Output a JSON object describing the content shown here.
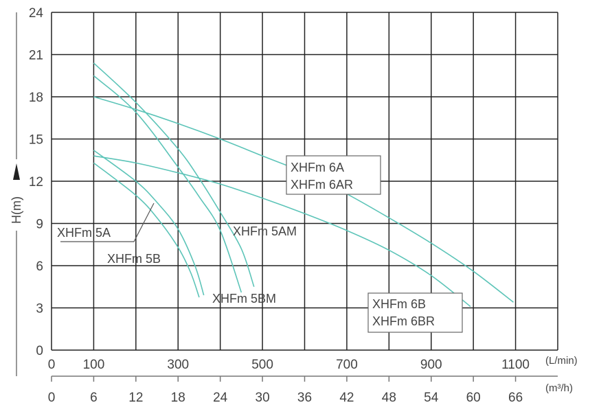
{
  "chart_data": {
    "type": "line",
    "title": "",
    "ylabel": "H(m)",
    "xlabel": "",
    "x_unit_primary": "(L/min)",
    "x_unit_secondary": "(m³/h)",
    "xlim": [
      0,
      1200
    ],
    "ylim": [
      0,
      24
    ],
    "grid": true,
    "y_ticks": [
      "0",
      "3",
      "6",
      "9",
      "12",
      "15",
      "18",
      "21",
      "24"
    ],
    "y_tick_values": [
      0,
      3,
      6,
      9,
      12,
      15,
      18,
      21,
      24
    ],
    "x_ticks_primary": [
      "0",
      "100",
      "300",
      "500",
      "700",
      "900",
      "1100"
    ],
    "x_tick_values_primary": [
      0,
      100,
      300,
      500,
      700,
      900,
      1100
    ],
    "x_ticks_secondary": [
      "0",
      "6",
      "12",
      "18",
      "24",
      "30",
      "36",
      "42",
      "48",
      "54",
      "60",
      "66"
    ],
    "line_color": "#5cc4b8",
    "series": [
      {
        "name": "XHFm 5AM",
        "x": [
          100,
          200,
          300,
          350,
          400,
          450,
          480
        ],
        "y": [
          20.4,
          17.6,
          14.3,
          12.2,
          9.8,
          7.2,
          4.5
        ]
      },
      {
        "name": "XHFm 5BM",
        "x": [
          100,
          200,
          300,
          350,
          400,
          450
        ],
        "y": [
          19.5,
          16.9,
          13.0,
          10.9,
          8.5,
          4.1
        ]
      },
      {
        "name": "XHFm 6A / XHFm 6AR",
        "x": [
          100,
          200,
          300,
          400,
          500,
          600,
          700,
          800,
          900,
          1000,
          1095
        ],
        "y": [
          18.0,
          17.1,
          16.1,
          15.0,
          13.8,
          12.6,
          11.1,
          9.4,
          7.6,
          5.6,
          3.4
        ]
      },
      {
        "name": "XHFm 6B / XHFm 6BR",
        "x": [
          100,
          200,
          300,
          400,
          500,
          600,
          700,
          800,
          900,
          993
        ],
        "y": [
          13.8,
          13.3,
          12.6,
          11.8,
          10.8,
          9.7,
          8.5,
          7.1,
          5.3,
          3.1
        ]
      },
      {
        "name": "XHFm 5A",
        "x": [
          100,
          200,
          250,
          300,
          340,
          361
        ],
        "y": [
          14.2,
          12.0,
          10.5,
          8.6,
          6.0,
          3.9
        ]
      },
      {
        "name": "XHFm 5B",
        "x": [
          100,
          200,
          250,
          300,
          330,
          350
        ],
        "y": [
          13.3,
          11.0,
          9.4,
          7.3,
          5.5,
          3.75
        ]
      }
    ],
    "annotations": {
      "a6": "XHFm 6A",
      "a6r": "XHFm 6AR",
      "b6": "XHFm 6B",
      "b6r": "XHFm 6BR",
      "a5": "XHFm 5A",
      "b5": "XHFm 5B",
      "am5": "XHFm 5AM",
      "bm5": "XHFm 5BM"
    }
  }
}
